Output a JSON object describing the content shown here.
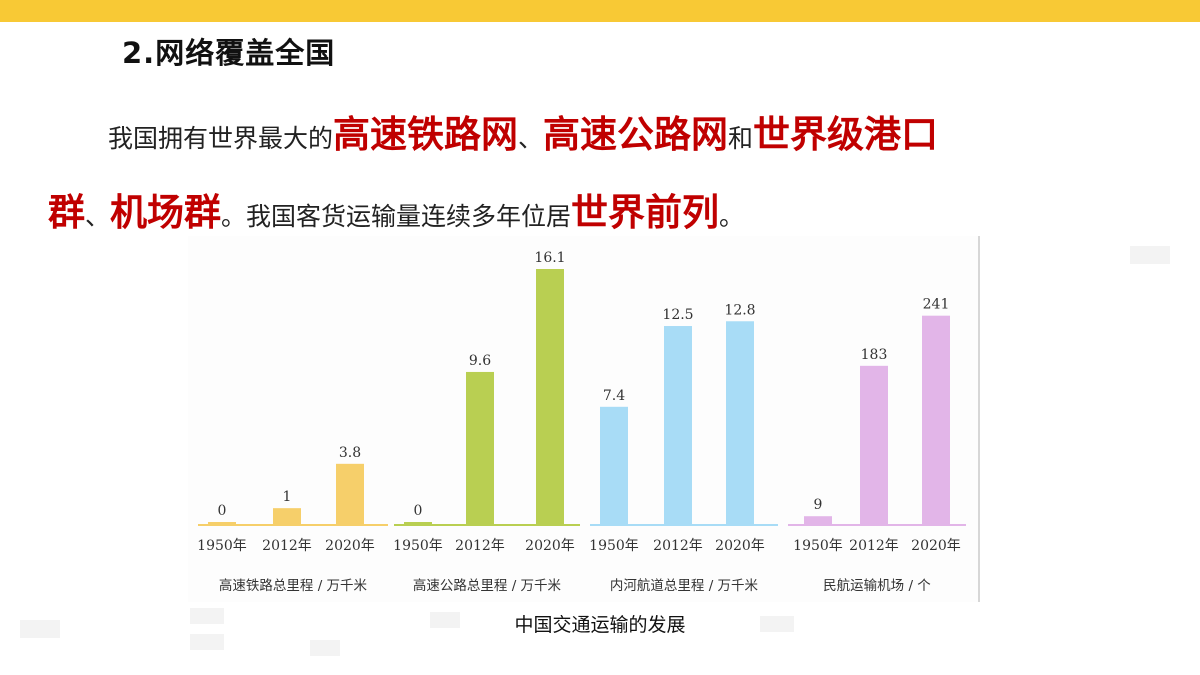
{
  "slide": {
    "heading": "2.网络覆盖全国",
    "line1": [
      {
        "text": "我国拥有世界最大的",
        "hl": false
      },
      {
        "text": "高速铁路网",
        "hl": true
      },
      {
        "text": "、",
        "hl": false
      },
      {
        "text": "高速公路网",
        "hl": true
      },
      {
        "text": "和",
        "hl": false
      },
      {
        "text": "世界级港口",
        "hl": true
      }
    ],
    "line2": [
      {
        "text": "群",
        "hl": true
      },
      {
        "text": "、",
        "hl": false
      },
      {
        "text": "机场群",
        "hl": true
      },
      {
        "text": "。我国客货运输量连续多年位居",
        "hl": false
      },
      {
        "text": "世界前列",
        "hl": true
      },
      {
        "text": "。",
        "hl": false
      }
    ],
    "caption": "中国交通运输的发展",
    "colors": {
      "top_bar": "#f8c935",
      "highlight": "#c00000"
    }
  },
  "chart_data": [
    {
      "type": "bar",
      "title": "高速铁路总里程 / 万千米",
      "categories": [
        "1950年",
        "2012年",
        "2020年"
      ],
      "values": [
        0,
        1,
        3.8
      ],
      "value_labels": [
        "0",
        "1",
        "3.8"
      ],
      "color": "#f6cf6a",
      "ylim": [
        0,
        16.1
      ]
    },
    {
      "type": "bar",
      "title": "高速公路总里程 / 万千米",
      "categories": [
        "1950年",
        "2012年",
        "2020年"
      ],
      "values": [
        0,
        9.6,
        16.1
      ],
      "value_labels": [
        "0",
        "9.6",
        "16.1"
      ],
      "color": "#b9cf52",
      "ylim": [
        0,
        16.1
      ]
    },
    {
      "type": "bar",
      "title": "内河航道总里程 / 万千米",
      "categories": [
        "1950年",
        "2012年",
        "2020年"
      ],
      "values": [
        7.4,
        12.5,
        12.8
      ],
      "value_labels": [
        "7.4",
        "12.5",
        "12.8"
      ],
      "color": "#a8dcf6",
      "ylim": [
        0,
        16.1
      ]
    },
    {
      "type": "bar",
      "title": "民航运输机场 / 个",
      "categories": [
        "1950年",
        "2012年",
        "2020年"
      ],
      "values": [
        9,
        183,
        241
      ],
      "value_labels": [
        "9",
        "183",
        "241"
      ],
      "color": "#e2b5e8",
      "ylim": [
        0,
        295
      ]
    }
  ]
}
